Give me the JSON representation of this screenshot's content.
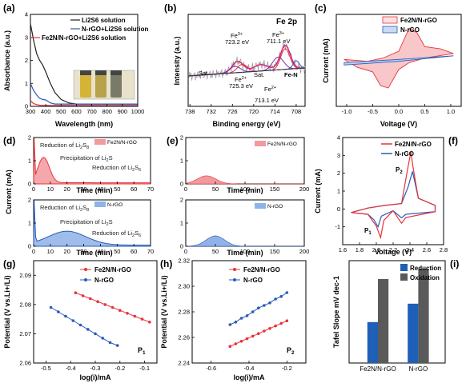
{
  "panels": {
    "a": {
      "label": "(a)",
      "xlabel": "Wavelength (nm)",
      "ylabel": "Absorbance (a.u.)",
      "xticks": [
        "300",
        "400",
        "500",
        "600",
        "700",
        "800",
        "900",
        "1000"
      ],
      "yticks": [
        "0",
        "1",
        "2",
        "3",
        "4"
      ],
      "legend": [
        "Li2S6 solution",
        "N-rGO+Li2S6 solution",
        "Fe2N/N-rGO+Li2S6 solution"
      ]
    },
    "b": {
      "label": "(b)",
      "title": "Fe 2p",
      "xlabel": "Binding energy (eV)",
      "ylabel": "Intensity (a.u.)",
      "xticks": [
        "738",
        "732",
        "726",
        "720",
        "714",
        "708"
      ],
      "annotations": [
        "Fe3+ 711.1 eV",
        "Fe3+ 723.2 eV",
        "Fe2+ 725.3 eV",
        "Fe2+ 713.1 eV",
        "Sat.",
        "Sat.",
        "Fe-N"
      ]
    },
    "c": {
      "label": "(c)",
      "xlabel": "Voltage (V)",
      "ylabel": "Current (mA)",
      "xticks": [
        "-1.0",
        "-0.5",
        "0.0",
        "0.5",
        "1.0"
      ],
      "legend": [
        "Fe2N/N-rGO",
        "N-rGO"
      ]
    },
    "d": {
      "label": "(d)",
      "xlabel": "Time (min)",
      "ylabel": "Current (mA)",
      "xticks": [
        "0",
        "10",
        "20",
        "30",
        "40",
        "50",
        "60",
        "70"
      ],
      "yticks": [
        "0",
        "1",
        "2"
      ],
      "legend_top": "Fe2N/N-rGO",
      "legend_bottom": "N-rGO",
      "annotations": [
        "Reduction of Li2S8",
        "Precipitation of Li2S",
        "Reduction of Li2S6"
      ]
    },
    "e": {
      "label": "(e)",
      "xlabel": "Time (min)",
      "xticks": [
        "0",
        "50",
        "100",
        "150",
        "200"
      ],
      "yticks": [
        "0",
        "1",
        "2"
      ],
      "legend_top": "Fe2N/N-rGO",
      "legend_bottom": "N-rGO"
    },
    "f": {
      "label": "(f)",
      "xlabel": "Voltage (V)",
      "ylabel": "Current (mA)",
      "xticks": [
        "1.6",
        "1.8",
        "2.0",
        "2.2",
        "2.4",
        "2.6",
        "2.8"
      ],
      "yticks": [
        "-1",
        "0",
        "1",
        "2",
        "3",
        "4"
      ],
      "legend": [
        "Fe2N/N-rGO",
        "N-rGO"
      ],
      "annotations": [
        "P1",
        "P2"
      ]
    },
    "g": {
      "label": "(g)",
      "xlabel": "log(i)/mA",
      "ylabel": "Potential (V vs.Li+/Li)",
      "xticks": [
        "-0.5",
        "-0.4",
        "-0.3",
        "-0.2",
        "-0.1"
      ],
      "yticks": [
        "2.06",
        "2.07",
        "2.08",
        "2.09"
      ],
      "legend": [
        "Fe2N/N-rGO",
        "N-rGO"
      ],
      "tag": "P1"
    },
    "h": {
      "label": "(h)",
      "xlabel": "log(i)/mA",
      "ylabel": "Potential (V vs.Li+/Li)",
      "xticks": [
        "-0.6",
        "-0.4",
        "-0.2"
      ],
      "yticks": [
        "2.24",
        "2.26",
        "2.28",
        "2.30",
        "2.32"
      ],
      "legend": [
        "Fe2N/N-rGO",
        "N-rGO"
      ],
      "tag": "P2"
    },
    "i": {
      "label": "(i)",
      "ylabel": "Tafel Slope mV dec-1",
      "categories": [
        "Fe2N/N-rGO",
        "N-rGO"
      ],
      "legend": [
        "Reduction",
        "Oxidation"
      ]
    }
  },
  "colors": {
    "red": "#e8333a",
    "blue": "#2a5bb8",
    "black": "#222222",
    "pink": "#f29a9e",
    "lightblue": "#8fb2e8",
    "gray": "#5a5a5a",
    "navy": "#1f5fb8"
  },
  "chart_data": [
    {
      "type": "line",
      "panel": "a",
      "xlim": [
        300,
        1000
      ],
      "ylim": [
        0,
        4
      ],
      "series": [
        {
          "name": "Li2S6 solution",
          "x": [
            300,
            320,
            340,
            360,
            380,
            400,
            430,
            460,
            500,
            550,
            600,
            700,
            800,
            1000
          ],
          "y": [
            3.6,
            2.9,
            2.3,
            2.0,
            1.8,
            1.5,
            1.0,
            0.6,
            0.3,
            0.15,
            0.1,
            0.1,
            0.1,
            0.1
          ]
        },
        {
          "name": "N-rGO+Li2S6 solution",
          "x": [
            300,
            320,
            340,
            360,
            380,
            400,
            430,
            460,
            500,
            600,
            800,
            1000
          ],
          "y": [
            1.0,
            0.7,
            0.5,
            0.35,
            0.3,
            0.28,
            0.15,
            0.1,
            0.1,
            0.1,
            0.1,
            0.1
          ]
        },
        {
          "name": "Fe2N/N-rGO+Li2S6 solution",
          "x": [
            300,
            320,
            340,
            360,
            400,
            500,
            600,
            800,
            1000
          ],
          "y": [
            0.25,
            0.12,
            0.08,
            0.05,
            0.04,
            0.04,
            0.04,
            0.04,
            0.04
          ]
        }
      ]
    },
    {
      "type": "line",
      "panel": "b",
      "xlim": [
        738,
        706
      ],
      "peaks": [
        {
          "label": "Fe3+",
          "x": 711.1
        },
        {
          "label": "Fe3+",
          "x": 723.2
        },
        {
          "label": "Fe2+",
          "x": 725.3
        },
        {
          "label": "Fe2+",
          "x": 713.1
        }
      ]
    },
    {
      "type": "line",
      "panel": "c",
      "xlim": [
        -1.2,
        1.2
      ],
      "series": [
        {
          "name": "Fe2N/N-rGO"
        },
        {
          "name": "N-rGO"
        }
      ]
    },
    {
      "type": "area",
      "panel": "d",
      "xlim": [
        0,
        70
      ],
      "ylim": [
        0,
        2
      ],
      "series": [
        {
          "name": "Fe2N/N-rGO"
        },
        {
          "name": "N-rGO"
        }
      ]
    },
    {
      "type": "area",
      "panel": "e",
      "xlim": [
        0,
        200
      ],
      "ylim": [
        0,
        2
      ],
      "series": [
        {
          "name": "Fe2N/N-rGO",
          "peak_x": 35,
          "peak_y": 0.35
        },
        {
          "name": "N-rGO",
          "peak_x": 50,
          "peak_y": 0.45
        }
      ]
    },
    {
      "type": "line",
      "panel": "f",
      "xlim": [
        1.6,
        2.8
      ],
      "ylim": [
        -2,
        4
      ],
      "series": [
        {
          "name": "Fe2N/N-rGO",
          "peak_ox": {
            "x": 2.41,
            "y": 3.2
          },
          "peak_red": {
            "x": 2.05,
            "y": -1.6
          }
        },
        {
          "name": "N-rGO",
          "peak_ox": {
            "x": 2.43,
            "y": 2.1
          },
          "peak_red": {
            "x": 2.02,
            "y": -1.0
          }
        }
      ]
    },
    {
      "type": "line",
      "panel": "g",
      "xlim": [
        -0.55,
        -0.05
      ],
      "ylim": [
        2.06,
        2.095
      ],
      "series": [
        {
          "name": "Fe2N/N-rGO",
          "x": [
            -0.38,
            -0.35,
            -0.32,
            -0.29,
            -0.26,
            -0.23,
            -0.2,
            -0.17,
            -0.14,
            -0.11,
            -0.08
          ],
          "y": [
            2.084,
            2.083,
            2.082,
            2.081,
            2.08,
            2.079,
            2.078,
            2.077,
            2.076,
            2.075,
            2.074
          ]
        },
        {
          "name": "N-rGO",
          "x": [
            -0.48,
            -0.45,
            -0.42,
            -0.39,
            -0.36,
            -0.33,
            -0.3,
            -0.27,
            -0.24,
            -0.21
          ],
          "y": [
            2.079,
            2.0775,
            2.076,
            2.0745,
            2.073,
            2.0715,
            2.07,
            2.0685,
            2.067,
            2.066
          ]
        }
      ]
    },
    {
      "type": "line",
      "panel": "h",
      "xlim": [
        -0.7,
        -0.1
      ],
      "ylim": [
        2.24,
        2.32
      ],
      "series": [
        {
          "name": "Fe2N/N-rGO",
          "x": [
            -0.5,
            -0.47,
            -0.44,
            -0.41,
            -0.38,
            -0.35,
            -0.32,
            -0.29,
            -0.26,
            -0.23,
            -0.2
          ],
          "y": [
            2.253,
            2.255,
            2.257,
            2.259,
            2.261,
            2.263,
            2.265,
            2.267,
            2.269,
            2.271,
            2.273
          ]
        },
        {
          "name": "N-rGO",
          "x": [
            -0.5,
            -0.47,
            -0.44,
            -0.41,
            -0.38,
            -0.35,
            -0.32,
            -0.29,
            -0.26,
            -0.23,
            -0.2
          ],
          "y": [
            2.27,
            2.272,
            2.275,
            2.277,
            2.28,
            2.283,
            2.285,
            2.287,
            2.29,
            2.292,
            2.295
          ]
        }
      ]
    },
    {
      "type": "bar",
      "panel": "i",
      "categories": [
        "Fe2N/N-rGO",
        "N-rGO"
      ],
      "ylim": [
        0,
        100
      ],
      "series": [
        {
          "name": "Reduction",
          "values": [
            40,
            58
          ]
        },
        {
          "name": "Oxidation",
          "values": [
            82,
            92
          ]
        }
      ]
    }
  ]
}
